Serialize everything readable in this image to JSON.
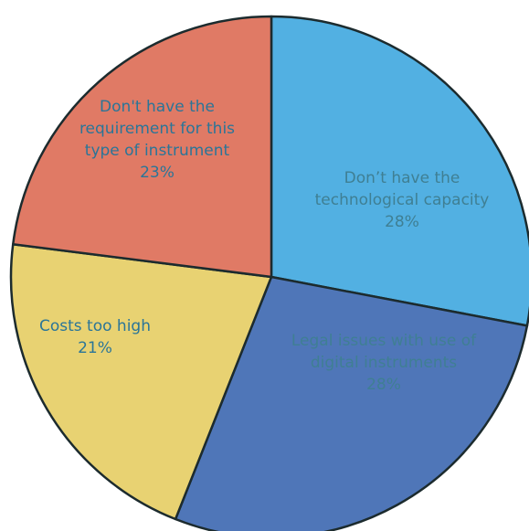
{
  "chart_data": {
    "type": "pie",
    "title": "",
    "labels": [
      "Don’t have the technological capacity",
      "Legal issues with use of digital instruments",
      "Costs too high",
      "Don't have the requirement for this type of instrument"
    ],
    "values": [
      28,
      28,
      21,
      23
    ],
    "value_labels": [
      "28%",
      "28%",
      "21%",
      "23%"
    ],
    "label_lines": [
      [
        "Don’t have the",
        "technological capacity"
      ],
      [
        "Legal issues with use of",
        "digital instruments"
      ],
      [
        "Costs too high"
      ],
      [
        "Don't have the",
        "requirement for this",
        "type of instrument"
      ]
    ],
    "colors": [
      "#52b0e2",
      "#4f76b8",
      "#e8d272",
      "#e07a65"
    ],
    "label_colors": [
      "#3f7f93",
      "#3f7f93",
      "#2a7598",
      "#2a7598"
    ],
    "start_angle_deg": 0,
    "direction": "clockwise",
    "legend": "none"
  }
}
